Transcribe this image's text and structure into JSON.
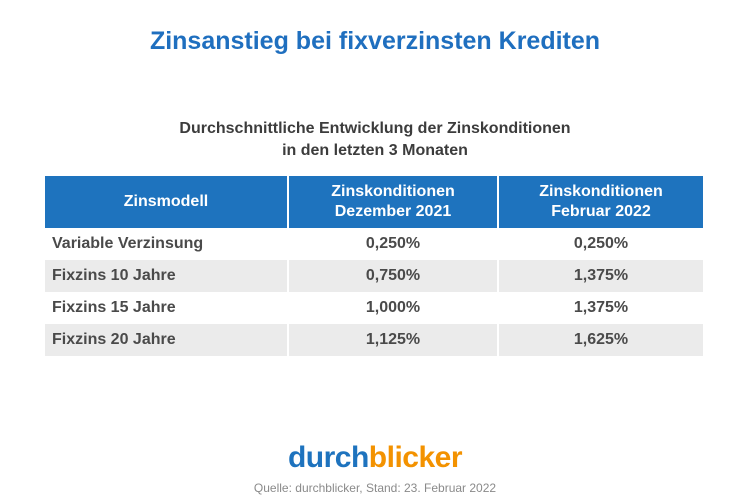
{
  "title": "Zinsanstieg bei fixverzinsten Krediten",
  "subtitle": {
    "line1": "Durchschnittliche Entwicklung der Zinskonditionen",
    "line2": "in den letzten 3 Monaten"
  },
  "table": {
    "headers": [
      {
        "line1": "Zinsmodell",
        "line2": ""
      },
      {
        "line1": "Zinskonditionen",
        "line2": "Dezember 2021"
      },
      {
        "line1": "Zinskonditionen",
        "line2": "Februar 2022"
      }
    ],
    "rows": [
      {
        "model": "Variable Verzinsung",
        "dec2021": "0,250%",
        "feb2022": "0,250%"
      },
      {
        "model": "Fixzins 10 Jahre",
        "dec2021": "0,750%",
        "feb2022": "1,375%"
      },
      {
        "model": "Fixzins 15 Jahre",
        "dec2021": "1,000%",
        "feb2022": "1,375%"
      },
      {
        "model": "Fixzins 20 Jahre",
        "dec2021": "1,125%",
        "feb2022": "1,625%"
      }
    ]
  },
  "logo": {
    "part1": "durch",
    "part2": "blicker",
    "color1": "#1e73be",
    "color2": "#f39200"
  },
  "source": "Quelle: durchblicker, Stand: 23. Februar 2022",
  "colors": {
    "title": "#1f6fbf",
    "header_bg": "#1e73be",
    "alt_row_bg": "#ebebeb"
  }
}
